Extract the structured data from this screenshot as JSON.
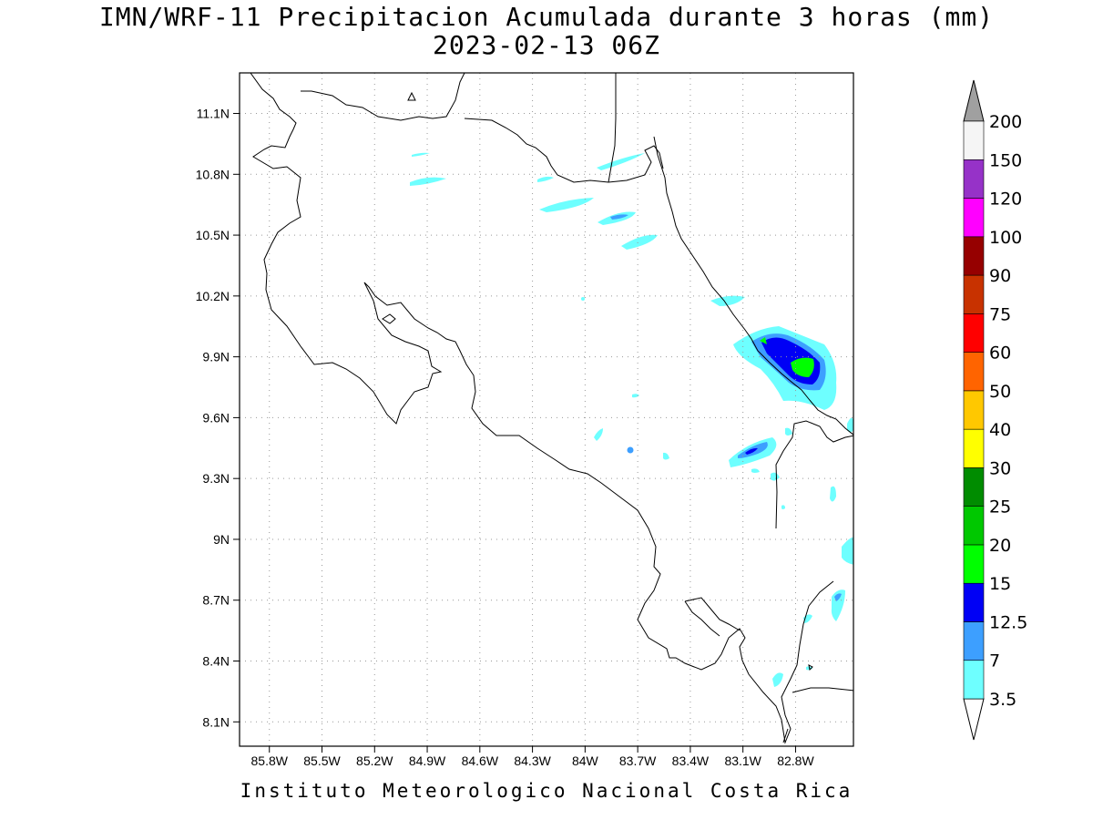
{
  "title_line1": "IMN/WRF-11 Precipitacion Acumulada durante 3 horas (mm)",
  "title_line2": "2023-02-13 06Z",
  "footer": "Instituto Meteorologico Nacional Costa Rica",
  "axes": {
    "lon_labels": [
      "85.8W",
      "85.5W",
      "85.2W",
      "84.9W",
      "84.6W",
      "84.3W",
      "84W",
      "83.7W",
      "83.4W",
      "83.1W",
      "82.8W"
    ],
    "lat_labels": [
      "11.1N",
      "10.8N",
      "10.5N",
      "10.2N",
      "9.9N",
      "9.6N",
      "9.3N",
      "9N",
      "8.7N",
      "8.4N",
      "8.1N"
    ],
    "lon_range": [
      -85.97,
      -82.47
    ],
    "lat_range": [
      7.98,
      11.3
    ],
    "grid": "dotted"
  },
  "colorbar": {
    "labels": [
      "3.5",
      "7",
      "12.5",
      "15",
      "20",
      "25",
      "30",
      "40",
      "50",
      "60",
      "75",
      "90",
      "100",
      "120",
      "150",
      "200"
    ],
    "colors": [
      "#6effff",
      "#3d9fff",
      "#0000f5",
      "#00ff00",
      "#00c800",
      "#008c00",
      "#ffff00",
      "#ffc800",
      "#ff6400",
      "#ff0000",
      "#c83200",
      "#960000",
      "#ff00ff",
      "#9632c8",
      "#f5f5f5"
    ],
    "over_color": "#a0a0a0",
    "under_color": "#ffffff"
  },
  "precip_areas": [
    {
      "lon": -82.82,
      "lat": 9.88,
      "max_mm": 20,
      "note": ""
    },
    {
      "lon": -83.07,
      "lat": 9.43,
      "max_mm": 15
    },
    {
      "lon": -83.85,
      "lat": 10.62,
      "max_mm": 12.5
    }
  ]
}
